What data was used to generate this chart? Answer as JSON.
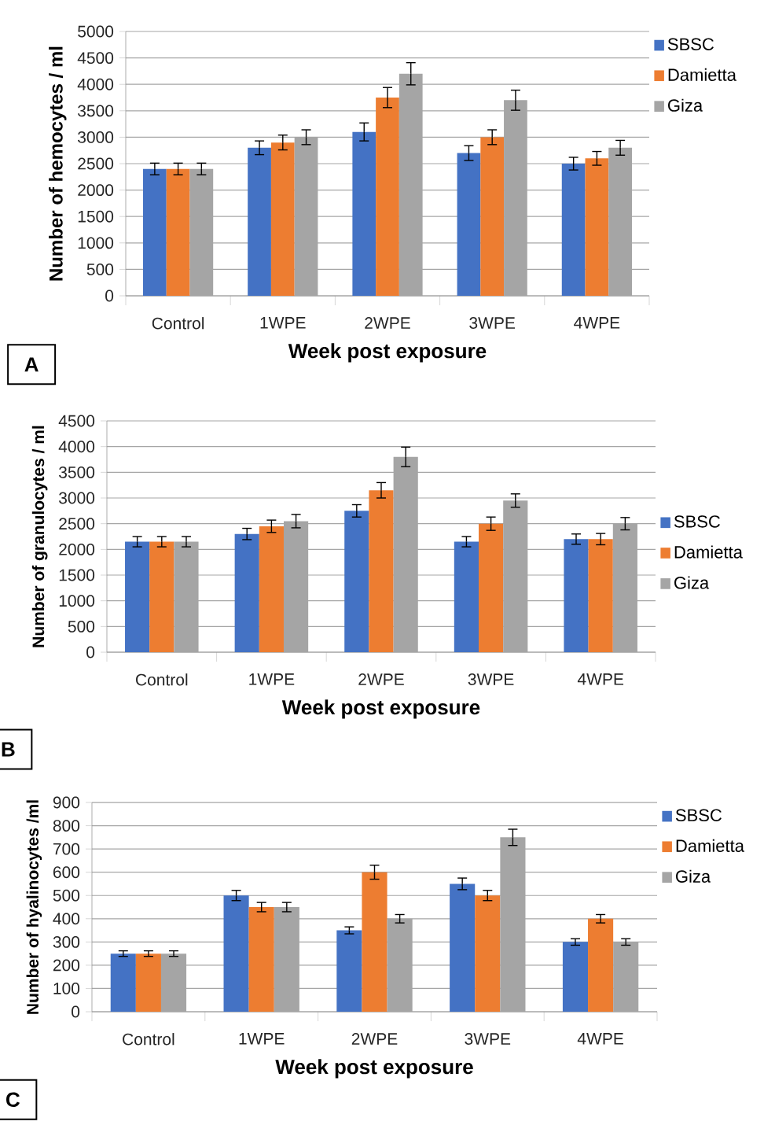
{
  "chart_data": [
    {
      "type": "bar",
      "categories": [
        "Control",
        "1WPE",
        "2WPE",
        "3WPE",
        "4WPE"
      ],
      "xlabel": "Week post exposure",
      "ylabel": "Number of hemocytes / ml",
      "ylim": [
        0,
        5000
      ],
      "yticks": [
        0,
        500,
        1000,
        1500,
        2000,
        2500,
        3000,
        3500,
        4000,
        4500,
        5000
      ],
      "grid": "y",
      "legend": "top right",
      "annotations": [
        "A"
      ],
      "series": [
        {
          "name": "SBSC",
          "color": "#4472c4",
          "values": [
            2400,
            2800,
            3100,
            2700,
            2500
          ],
          "errors": [
            110,
            130,
            170,
            140,
            120
          ]
        },
        {
          "name": "Damietta",
          "color": "#ed7d31",
          "values": [
            2400,
            2900,
            3750,
            3000,
            2600
          ],
          "errors": [
            110,
            140,
            190,
            140,
            130
          ]
        },
        {
          "name": "Giza",
          "color": "#a5a5a5",
          "values": [
            2400,
            3000,
            4200,
            3700,
            2800
          ],
          "errors": [
            110,
            140,
            210,
            190,
            140
          ]
        }
      ]
    },
    {
      "type": "bar",
      "categories": [
        "Control",
        "1WPE",
        "2WPE",
        "3WPE",
        "4WPE"
      ],
      "xlabel": "Week post exposure",
      "ylabel": "Number of granulocytes / ml",
      "ylim": [
        0,
        4500
      ],
      "yticks": [
        0,
        500,
        1000,
        1500,
        2000,
        2500,
        3000,
        3500,
        4000,
        4500
      ],
      "grid": "y",
      "legend": "right",
      "annotations": [
        "B"
      ],
      "series": [
        {
          "name": "SBSC",
          "color": "#4472c4",
          "values": [
            2150,
            2300,
            2750,
            2150,
            2200
          ],
          "errors": [
            100,
            110,
            120,
            100,
            100
          ]
        },
        {
          "name": "Damietta",
          "color": "#ed7d31",
          "values": [
            2150,
            2450,
            3150,
            2500,
            2200
          ],
          "errors": [
            100,
            120,
            150,
            130,
            110
          ]
        },
        {
          "name": "Giza",
          "color": "#a5a5a5",
          "values": [
            2150,
            2550,
            3800,
            2950,
            2500
          ],
          "errors": [
            100,
            130,
            190,
            130,
            120
          ]
        }
      ]
    },
    {
      "type": "bar",
      "categories": [
        "Control",
        "1WPE",
        "2WPE",
        "3WPE",
        "4WPE"
      ],
      "xlabel": "Week post exposure",
      "ylabel": "Number of hyalinocytes /ml",
      "ylim": [
        0,
        900
      ],
      "yticks": [
        0,
        100,
        200,
        300,
        400,
        500,
        600,
        700,
        800,
        900
      ],
      "grid": "y",
      "legend": "top right",
      "annotations": [
        "C"
      ],
      "series": [
        {
          "name": "SBSC",
          "color": "#4472c4",
          "values": [
            250,
            500,
            350,
            550,
            300
          ],
          "errors": [
            12,
            22,
            15,
            25,
            14
          ]
        },
        {
          "name": "Damietta",
          "color": "#ed7d31",
          "values": [
            250,
            450,
            600,
            500,
            400
          ],
          "errors": [
            12,
            20,
            30,
            22,
            18
          ]
        },
        {
          "name": "Giza",
          "color": "#a5a5a5",
          "values": [
            250,
            450,
            400,
            750,
            300
          ],
          "errors": [
            12,
            20,
            18,
            35,
            14
          ]
        }
      ]
    }
  ]
}
